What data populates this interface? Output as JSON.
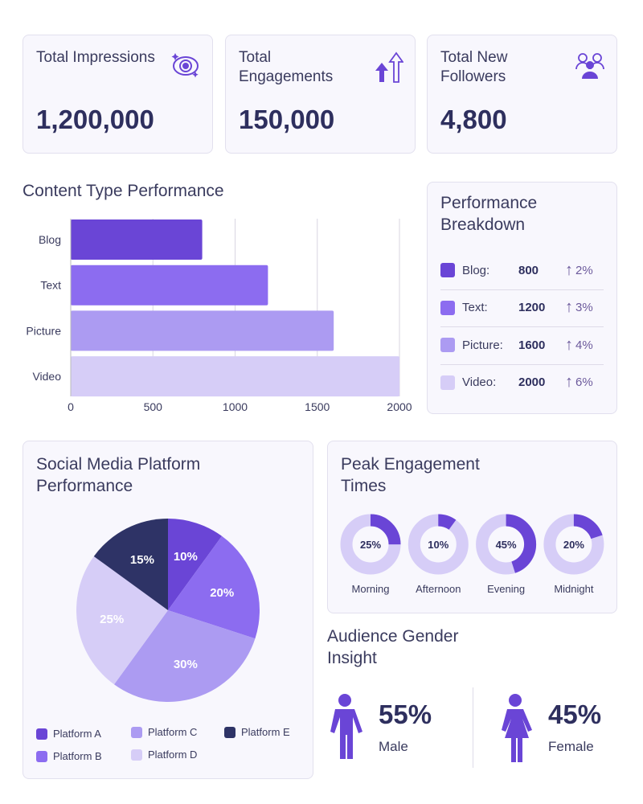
{
  "kpis": [
    {
      "label": "Total Impressions",
      "value": "1,200,000",
      "icon": "eye-icon"
    },
    {
      "label": "Total Engagements",
      "value": "150,000",
      "icon": "arrows-up-icon"
    },
    {
      "label": "Total New Followers",
      "value": "4,800",
      "icon": "users-icon"
    }
  ],
  "colors": {
    "accent": "#6a45d6",
    "text": "#2e2f5e"
  },
  "chart_data": [
    {
      "type": "bar",
      "orientation": "horizontal",
      "title": "Content Type Performance",
      "categories": [
        "Blog",
        "Text",
        "Picture",
        "Video"
      ],
      "values": [
        800,
        1200,
        1600,
        2000
      ],
      "colors": [
        "#6a45d6",
        "#8c6cf0",
        "#ac9bf2",
        "#d6cdf7"
      ],
      "xlim": [
        0,
        2000
      ],
      "xticks": [
        "0",
        "500",
        "1000",
        "1500",
        "2000"
      ],
      "grid": true
    },
    {
      "type": "pie",
      "title": "Social Media Platform Performance",
      "categories": [
        "Platform A",
        "Platform B",
        "Platform C",
        "Platform D",
        "Platform E"
      ],
      "values": [
        10,
        20,
        30,
        25,
        15
      ],
      "labels": [
        "10%",
        "20%",
        "30%",
        "25%",
        "15%"
      ],
      "colors": [
        "#6a45d6",
        "#8c6cf0",
        "#ac9bf2",
        "#d6cdf7",
        "#2e3366"
      ],
      "legend": "bottom"
    },
    {
      "type": "pie",
      "subtype": "donut",
      "title": "Peak Engagement Times",
      "categories": [
        "Morning",
        "Afternoon",
        "Evening",
        "Midnight"
      ],
      "values": [
        25,
        10,
        45,
        20
      ],
      "labels": [
        "25%",
        "10%",
        "45%",
        "20%"
      ],
      "colors": [
        "#6a45d6",
        "#d6cdf7"
      ]
    }
  ],
  "breakdown": {
    "title": "Performance Breakdown",
    "rows": [
      {
        "name": "Blog:",
        "value": "800",
        "change": "2%",
        "color": "#6a45d6"
      },
      {
        "name": "Text:",
        "value": "1200",
        "change": "3%",
        "color": "#8c6cf0"
      },
      {
        "name": "Picture:",
        "value": "1600",
        "change": "4%",
        "color": "#ac9bf2"
      },
      {
        "name": "Video:",
        "value": "2000",
        "change": "6%",
        "color": "#d6cdf7"
      }
    ]
  },
  "gender": {
    "title": "Audience Gender Insight",
    "male": {
      "pct": "55%",
      "label": "Male"
    },
    "female": {
      "pct": "45%",
      "label": "Female"
    }
  }
}
